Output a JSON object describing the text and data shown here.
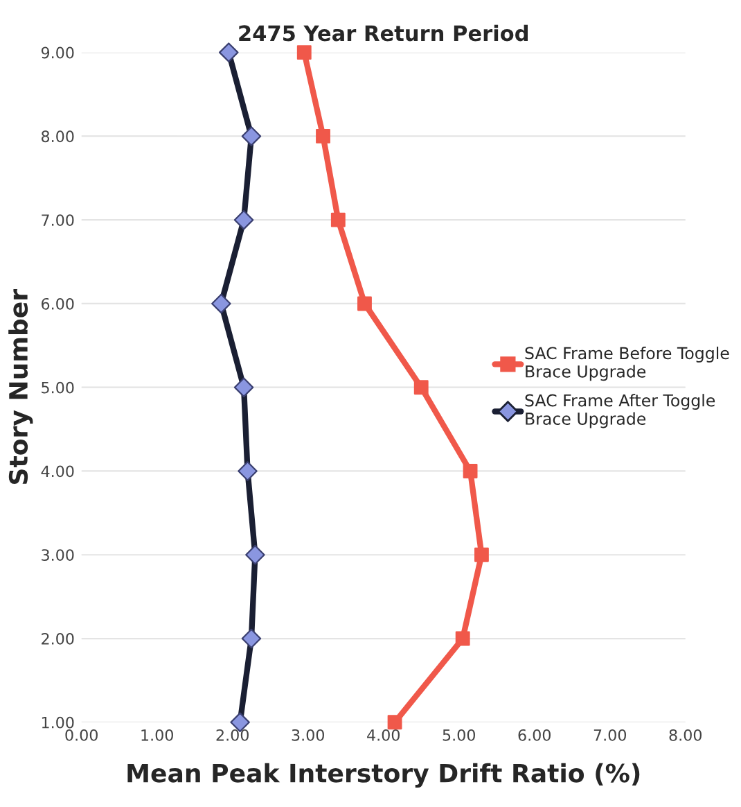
{
  "chart_data": {
    "type": "line",
    "title": "2475 Year Return Period",
    "xlabel": "Mean Peak Interstory Drift Ratio (%)",
    "ylabel": "Story Number",
    "xlim": [
      0,
      8
    ],
    "xticks": [
      {
        "value": 0,
        "label": "0.00"
      },
      {
        "value": 1,
        "label": "1.00"
      },
      {
        "value": 2,
        "label": "2.00"
      },
      {
        "value": 3,
        "label": "3.00"
      },
      {
        "value": 4,
        "label": "4.00"
      },
      {
        "value": 5,
        "label": "5.00"
      },
      {
        "value": 6,
        "label": "6.00"
      },
      {
        "value": 7,
        "label": "7.00"
      },
      {
        "value": 8,
        "label": "8.00"
      }
    ],
    "ylim": [
      1,
      9
    ],
    "yticks": [
      {
        "value": 1,
        "label": "1.00"
      },
      {
        "value": 2,
        "label": "2.00"
      },
      {
        "value": 3,
        "label": "3.00"
      },
      {
        "value": 4,
        "label": "4.00"
      },
      {
        "value": 5,
        "label": "5.00"
      },
      {
        "value": 6,
        "label": "6.00"
      },
      {
        "value": 7,
        "label": "7.00"
      },
      {
        "value": 8,
        "label": "8.00"
      },
      {
        "value": 9,
        "label": "9.00"
      }
    ],
    "grid": "y",
    "legend": "right",
    "line_style": "solid",
    "series": [
      {
        "name": "SAC Frame Before Toggle Brace Upgrade",
        "color": "#f0584a",
        "marker": "square",
        "x": [
          2.95,
          3.2,
          3.4,
          3.75,
          4.5,
          5.15,
          5.3,
          5.05,
          4.15
        ],
        "values": [
          9,
          8,
          7,
          6,
          5,
          4,
          3,
          2,
          1
        ]
      },
      {
        "name": "SAC Frame After Toggle Brace Upgrade",
        "color": "#1a1f33",
        "marker": "diamond",
        "x": [
          1.95,
          2.25,
          2.15,
          1.85,
          2.15,
          2.2,
          2.3,
          2.25,
          2.1
        ],
        "values": [
          9,
          8,
          7,
          6,
          5,
          4,
          3,
          2,
          1
        ]
      }
    ]
  }
}
